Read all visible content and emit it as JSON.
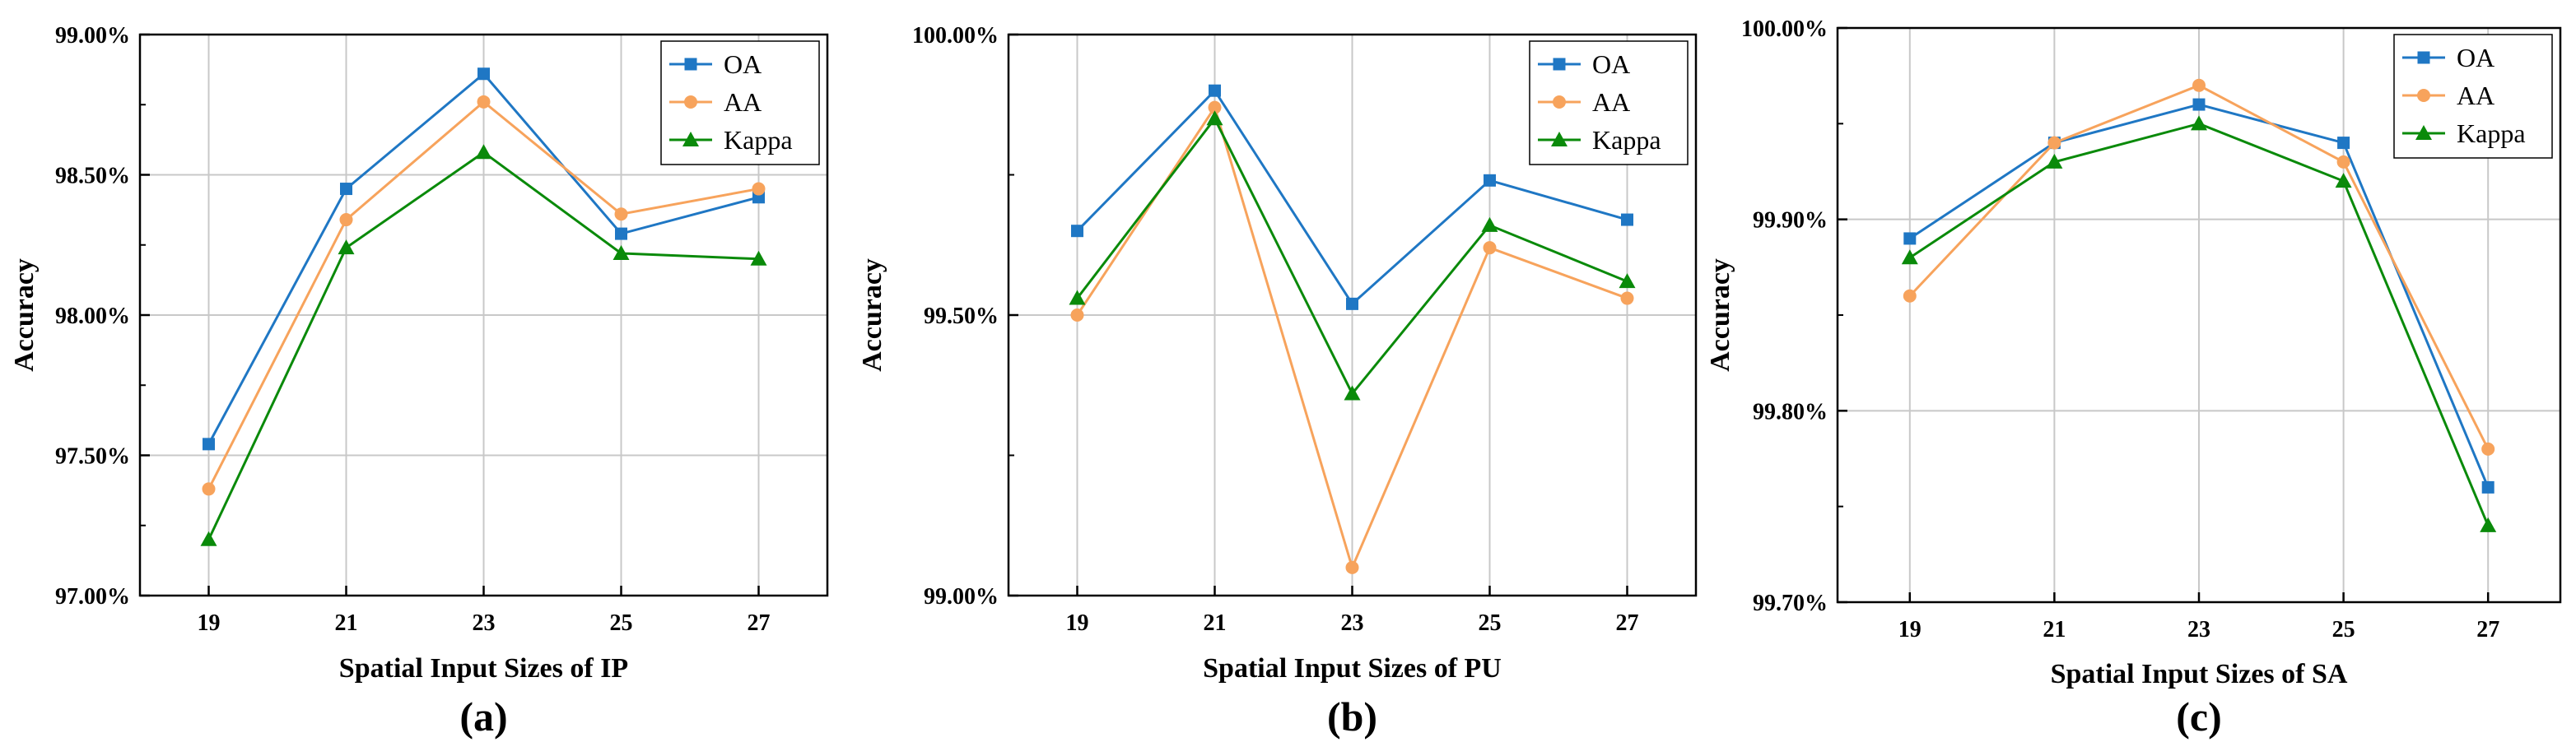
{
  "chart_data": [
    {
      "type": "line",
      "panel_label": "(a)",
      "xlabel": "Spatial Input Sizes of IP",
      "ylabel": "Accuracy",
      "categories": [
        "19",
        "21",
        "23",
        "25",
        "27"
      ],
      "ylim": [
        97.0,
        99.0
      ],
      "yticks": [
        "97.00%",
        "97.50%",
        "98.00%",
        "98.50%",
        "99.00%"
      ],
      "grid": true,
      "legend_position": "top-right",
      "series": [
        {
          "name": "OA",
          "values": [
            97.54,
            98.45,
            98.86,
            98.29,
            98.42
          ],
          "color": "#1f77c4",
          "marker": "square"
        },
        {
          "name": "AA",
          "values": [
            97.38,
            98.34,
            98.76,
            98.36,
            98.45
          ],
          "color": "#f7a35c",
          "marker": "circle"
        },
        {
          "name": "Kappa",
          "values": [
            97.2,
            98.24,
            98.58,
            98.22,
            98.2
          ],
          "color": "#0a8a0a",
          "marker": "triangle"
        }
      ]
    },
    {
      "type": "line",
      "panel_label": "(b)",
      "xlabel": "Spatial Input Sizes of PU",
      "ylabel": "Accuracy",
      "categories": [
        "19",
        "21",
        "23",
        "25",
        "27"
      ],
      "ylim": [
        99.0,
        100.0
      ],
      "yticks": [
        "99.00%",
        "99.50%",
        "100.00%"
      ],
      "grid": true,
      "legend_position": "top-right",
      "series": [
        {
          "name": "OA",
          "values": [
            99.65,
            99.9,
            99.52,
            99.74,
            99.67
          ],
          "color": "#1f77c4",
          "marker": "square"
        },
        {
          "name": "AA",
          "values": [
            99.5,
            99.87,
            99.05,
            99.62,
            99.53
          ],
          "color": "#f7a35c",
          "marker": "circle"
        },
        {
          "name": "Kappa",
          "values": [
            99.53,
            99.85,
            99.36,
            99.66,
            99.56
          ],
          "color": "#0a8a0a",
          "marker": "triangle"
        }
      ]
    },
    {
      "type": "line",
      "panel_label": "(c)",
      "xlabel": "Spatial Input Sizes of SA",
      "ylabel": "Accuracy",
      "categories": [
        "19",
        "21",
        "23",
        "25",
        "27"
      ],
      "ylim": [
        99.7,
        100.0
      ],
      "yticks": [
        "99.70%",
        "99.80%",
        "99.90%",
        "100.00%"
      ],
      "grid": true,
      "legend_position": "top-right",
      "series": [
        {
          "name": "OA",
          "values": [
            99.89,
            99.94,
            99.96,
            99.94,
            99.76
          ],
          "color": "#1f77c4",
          "marker": "square"
        },
        {
          "name": "AA",
          "values": [
            99.86,
            99.94,
            99.97,
            99.93,
            99.78
          ],
          "color": "#f7a35c",
          "marker": "circle"
        },
        {
          "name": "Kappa",
          "values": [
            99.88,
            99.93,
            99.95,
            99.92,
            99.74
          ],
          "color": "#0a8a0a",
          "marker": "triangle"
        }
      ]
    }
  ]
}
